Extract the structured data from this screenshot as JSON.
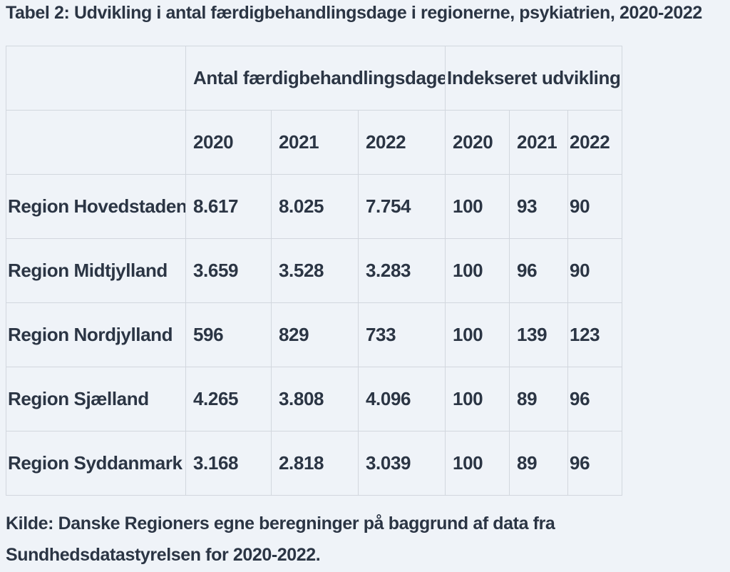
{
  "caption": "Tabel 2: Udvikling i antal færdigbehandlingsdage i regionerne, psykiatrien, 2020-2022",
  "table": {
    "group_headers": [
      "Antal færdigbehandlingsdage",
      "Indekseret udvikling"
    ],
    "year_headers": [
      "2020",
      "2021",
      "2022",
      "2020",
      "2021",
      "2022"
    ],
    "rows": [
      {
        "region": "Region Hovedstaden",
        "values": [
          "8.617",
          "8.025",
          "7.754",
          "100",
          "93",
          "90"
        ]
      },
      {
        "region": "Region Midtjylland",
        "values": [
          "3.659",
          "3.528",
          "3.283",
          "100",
          "96",
          "90"
        ]
      },
      {
        "region": "Region Nordjylland",
        "values": [
          "596",
          "829",
          "733",
          "100",
          "139",
          "123"
        ]
      },
      {
        "region": "Region Sjælland",
        "values": [
          "4.265",
          "3.808",
          "4.096",
          "100",
          "89",
          "96"
        ]
      },
      {
        "region": "Region Syddanmark",
        "values": [
          "3.168",
          "2.818",
          "3.039",
          "100",
          "89",
          "96"
        ]
      }
    ]
  },
  "source_note": "Kilde: Danske Regioners egne beregninger på baggrund af data fra Sundhedsdatastyrelsen for 2020-2022."
}
